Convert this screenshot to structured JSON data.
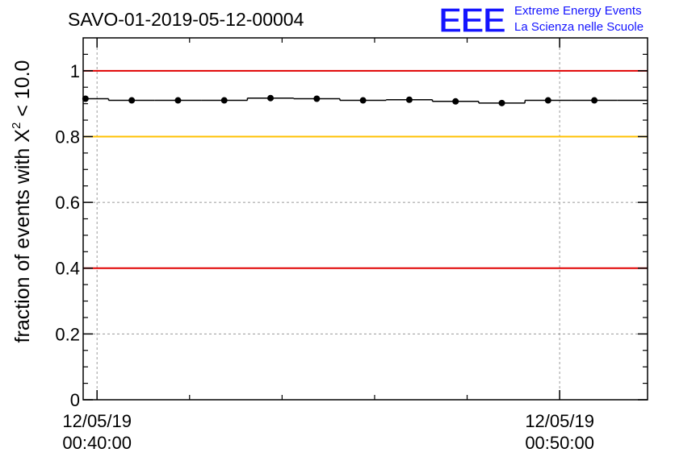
{
  "chart_data": {
    "type": "scatter",
    "title": "SAVO-01-2019-05-12-00004",
    "ylabel_main": "fraction of events with X",
    "ylabel_sup": "2",
    "ylabel_tail": " < 10.0",
    "xlabel": "",
    "xlim": [
      -0.3,
      11.9
    ],
    "ylim": [
      0,
      1.1
    ],
    "grid": true,
    "yticks": [
      {
        "value": 0,
        "label": "0"
      },
      {
        "value": 0.2,
        "label": "0.2"
      },
      {
        "value": 0.4,
        "label": "0.4"
      },
      {
        "value": 0.6,
        "label": "0.6"
      },
      {
        "value": 0.8,
        "label": "0.8"
      },
      {
        "value": 1.0,
        "label": "1"
      }
    ],
    "xticks": [
      {
        "value": 0,
        "date": "12/05/19",
        "time": "00:40:00"
      },
      {
        "value": 10,
        "date": "12/05/19",
        "time": "00:50:00"
      }
    ],
    "x_minor_ticks": [
      2,
      4,
      6,
      8
    ],
    "reference_lines": [
      {
        "name": "upper-red",
        "y": 1.0,
        "color": "#e00000"
      },
      {
        "name": "yellow",
        "y": 0.8,
        "color": "#ffc000"
      },
      {
        "name": "lower-red",
        "y": 0.4,
        "color": "#e00000"
      }
    ],
    "series": [
      {
        "name": "fraction",
        "color": "#000000",
        "x": [
          -0.25,
          0.75,
          1.75,
          2.75,
          3.75,
          4.75,
          5.75,
          6.75,
          7.75,
          8.75,
          9.75,
          10.75
        ],
        "y": [
          0.915,
          0.91,
          0.91,
          0.91,
          0.917,
          0.915,
          0.91,
          0.912,
          0.907,
          0.902,
          0.91,
          0.91
        ],
        "bin_width": 1.0
      }
    ]
  },
  "logo": {
    "letters": "EEE",
    "line1": "Extreme Energy Events",
    "line2": "La Scienza nelle Scuole",
    "color": "#1414ff"
  }
}
